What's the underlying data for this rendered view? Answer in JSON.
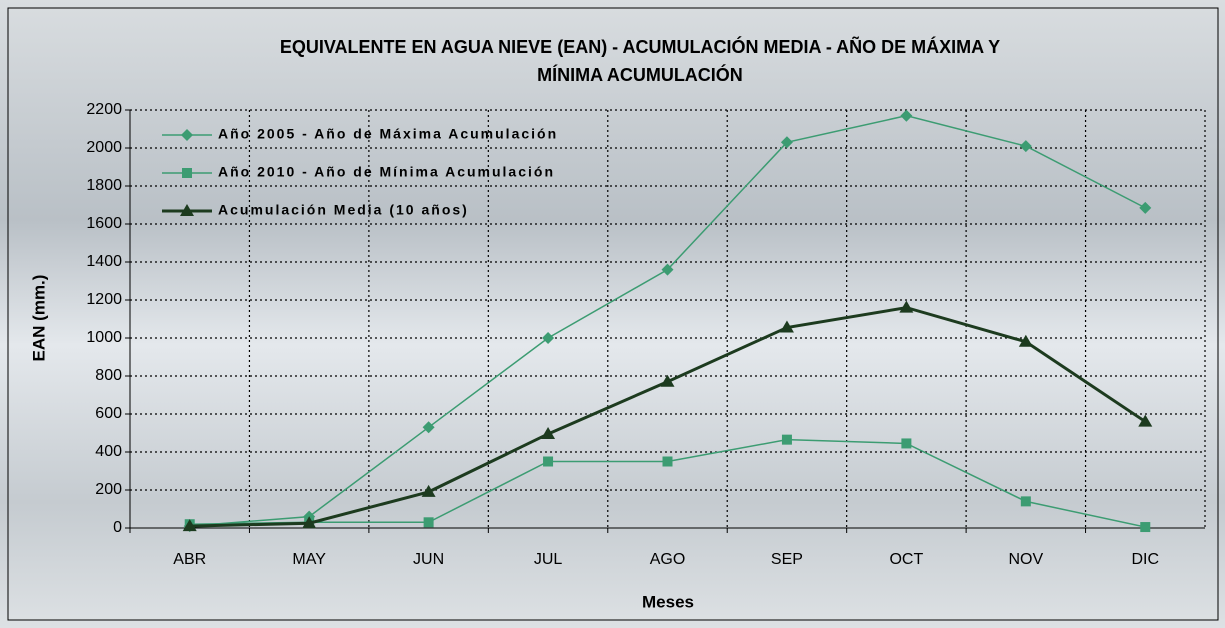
{
  "chart_data": {
    "type": "line",
    "title": [
      "EQUIVALENTE EN AGUA NIEVE (EAN) - ACUMULACIÓN MEDIA - AÑO DE MÁXIMA Y",
      "MÍNIMA ACUMULACIÓN"
    ],
    "x_label": "Meses",
    "y_label": "EAN (mm.)",
    "categories": [
      "ABR",
      "MAY",
      "JUN",
      "JUL",
      "AGO",
      "SEP",
      "OCT",
      "NOV",
      "DIC"
    ],
    "series": [
      {
        "name": "Año 2005 - Año de Máxima Acumulación",
        "color": "#3c9c72",
        "marker": "diamond",
        "width": 1.5,
        "values": [
          10,
          60,
          530,
          1000,
          1360,
          2030,
          2170,
          2010,
          1685
        ]
      },
      {
        "name": "Año 2010 - Año de Mínima Acumulación",
        "color": "#3c9c72",
        "marker": "square",
        "width": 1.5,
        "values": [
          20,
          30,
          30,
          350,
          350,
          465,
          445,
          140,
          5
        ]
      },
      {
        "name": "Acumulación Media (10 años)",
        "color": "#1d3b1f",
        "marker": "triangle",
        "width": 3,
        "values": [
          10,
          25,
          190,
          495,
          770,
          1055,
          1160,
          980,
          560
        ]
      }
    ],
    "ylim": [
      0,
      2200
    ],
    "yticks": [
      0,
      200,
      400,
      600,
      800,
      1000,
      1200,
      1400,
      1600,
      1800,
      2000,
      2200
    ],
    "grid": true,
    "legend": "top-left"
  }
}
